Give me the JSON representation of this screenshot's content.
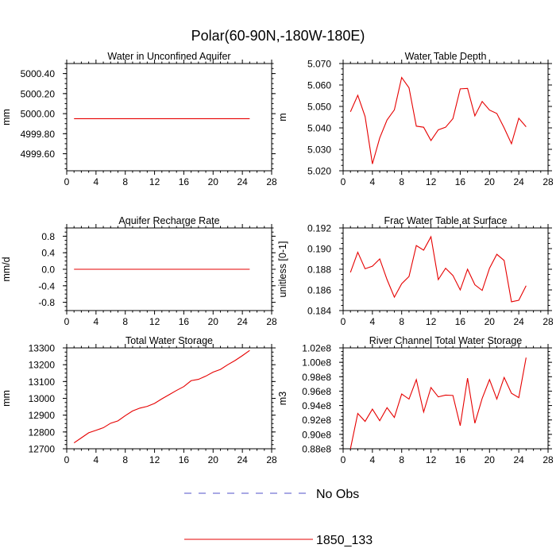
{
  "figure": {
    "title": "Polar(60-90N,-180W-180E)"
  },
  "legend": {
    "items": [
      {
        "label": "No Obs",
        "color": "#5050c8",
        "dash": true
      },
      {
        "label": "1850_133",
        "color": "#e60000",
        "dash": false
      }
    ]
  },
  "chart_data": [
    {
      "type": "line",
      "title": "Water in Unconfined Aquifer",
      "ylabel": "mm",
      "xlim": [
        0,
        28
      ],
      "ylim": [
        4999.43,
        5000.5
      ],
      "x_ticks": [
        0,
        4,
        8,
        12,
        16,
        20,
        24,
        28
      ],
      "y_ticks": [
        4999.6,
        4999.8,
        5000.0,
        5000.2,
        5000.4
      ],
      "y_tick_labels": [
        "4999.60",
        "4999.80",
        "5000.00",
        "5000.20",
        "5000.40"
      ],
      "x": [
        1,
        25
      ],
      "series": [
        {
          "name": "1850_133",
          "color": "#e60000",
          "values": [
            4999.95,
            4999.95
          ]
        }
      ]
    },
    {
      "type": "line",
      "title": "Water Table Depth",
      "ylabel": "m",
      "xlim": [
        0,
        28
      ],
      "ylim": [
        5.02,
        5.07
      ],
      "x_ticks": [
        0,
        4,
        8,
        12,
        16,
        20,
        24,
        28
      ],
      "y_ticks": [
        5.02,
        5.03,
        5.04,
        5.05,
        5.06,
        5.07
      ],
      "y_tick_labels": [
        "5.020",
        "5.030",
        "5.040",
        "5.050",
        "5.060",
        "5.070"
      ],
      "x": [
        1,
        2,
        3,
        4,
        5,
        6,
        7,
        8,
        9,
        10,
        11,
        12,
        13,
        14,
        15,
        16,
        17,
        18,
        19,
        20,
        21,
        22,
        23,
        24,
        25
      ],
      "series": [
        {
          "name": "1850_133",
          "color": "#e60000",
          "values": [
            5.0475,
            5.0552,
            5.0453,
            5.0232,
            5.0353,
            5.0437,
            5.0484,
            5.0635,
            5.0587,
            5.0408,
            5.0403,
            5.0341,
            5.0391,
            5.0403,
            5.0443,
            5.0582,
            5.0584,
            5.0456,
            5.0523,
            5.0483,
            5.0467,
            5.04,
            5.0326,
            5.0445,
            5.0405
          ]
        }
      ]
    },
    {
      "type": "line",
      "title": "Aquifer Recharge Rate",
      "ylabel": "mm/d",
      "xlim": [
        0,
        28
      ],
      "ylim": [
        -1.0,
        1.0
      ],
      "x_ticks": [
        0,
        4,
        8,
        12,
        16,
        20,
        24,
        28
      ],
      "y_ticks": [
        -0.8,
        -0.4,
        0.0,
        0.4,
        0.8
      ],
      "y_tick_labels": [
        "-0.8",
        "-0.4",
        "0.0",
        "0.4",
        "0.8"
      ],
      "x": [
        1,
        25
      ],
      "series": [
        {
          "name": "1850_133",
          "color": "#e60000",
          "values": [
            0.0,
            0.0
          ]
        }
      ]
    },
    {
      "type": "line",
      "title": "Frac Water Table at Surface",
      "ylabel": "unitless [0-1]",
      "xlim": [
        0,
        28
      ],
      "ylim": [
        0.184,
        0.192
      ],
      "x_ticks": [
        0,
        4,
        8,
        12,
        16,
        20,
        24,
        28
      ],
      "y_ticks": [
        0.184,
        0.186,
        0.188,
        0.19,
        0.192
      ],
      "y_tick_labels": [
        "0.184",
        "0.186",
        "0.188",
        "0.190",
        "0.192"
      ],
      "x": [
        1,
        2,
        3,
        4,
        5,
        6,
        7,
        8,
        9,
        10,
        11,
        12,
        13,
        14,
        15,
        16,
        17,
        18,
        19,
        20,
        21,
        22,
        23,
        24,
        25
      ],
      "series": [
        {
          "name": "1850_133",
          "color": "#e60000",
          "values": [
            0.1877,
            0.18965,
            0.18805,
            0.1883,
            0.189,
            0.187,
            0.1853,
            0.1866,
            0.1873,
            0.1903,
            0.18985,
            0.19115,
            0.187,
            0.1881,
            0.1874,
            0.186,
            0.188,
            0.1865,
            0.18595,
            0.1881,
            0.18945,
            0.18885,
            0.18485,
            0.185,
            0.1864
          ]
        }
      ]
    },
    {
      "type": "line",
      "title": "Total Water Storage",
      "ylabel": "mm",
      "xlim": [
        0,
        28
      ],
      "ylim": [
        12700,
        13300
      ],
      "x_ticks": [
        0,
        4,
        8,
        12,
        16,
        20,
        24,
        28
      ],
      "y_ticks": [
        12700,
        12800,
        12900,
        13000,
        13100,
        13200,
        13300
      ],
      "y_tick_labels": [
        "12700",
        "12800",
        "12900",
        "13000",
        "13100",
        "13200",
        "13300"
      ],
      "x": [
        1,
        2,
        3,
        4,
        5,
        6,
        7,
        8,
        9,
        10,
        11,
        12,
        13,
        14,
        15,
        16,
        17,
        18,
        19,
        20,
        21,
        22,
        23,
        24,
        25
      ],
      "series": [
        {
          "name": "1850_133",
          "color": "#e60000",
          "values": [
            12735,
            12765,
            12795,
            12810,
            12825,
            12852,
            12866,
            12897,
            12925,
            12942,
            12952,
            12970,
            12997,
            13022,
            13047,
            13070,
            13105,
            13113,
            13132,
            13156,
            13172,
            13200,
            13225,
            13254,
            13285
          ]
        }
      ]
    },
    {
      "type": "line",
      "title": "River Channel Total Water Storage",
      "ylabel": "m3",
      "xlim": [
        0,
        28
      ],
      "ylim": [
        88000000.0,
        102000000.0
      ],
      "x_ticks": [
        0,
        4,
        8,
        12,
        16,
        20,
        24,
        28
      ],
      "y_ticks": [
        88000000.0,
        90000000.0,
        92000000.0,
        94000000.0,
        96000000.0,
        98000000.0,
        100000000.0,
        102000000.0
      ],
      "y_tick_labels": [
        "0.88e8",
        "0.90e8",
        "0.92e8",
        "0.94e8",
        "0.96e8",
        "0.98e8",
        "1.00e8",
        "1.02e8"
      ],
      "x": [
        1,
        2,
        3,
        4,
        5,
        6,
        7,
        8,
        9,
        10,
        11,
        12,
        13,
        14,
        15,
        16,
        17,
        18,
        19,
        20,
        21,
        22,
        23,
        24,
        25
      ],
      "series": [
        {
          "name": "1850_133",
          "color": "#e60000",
          "values": [
            88000000.0,
            92900000.0,
            91800000.0,
            93500000.0,
            91900000.0,
            93700000.0,
            92350000.0,
            95600000.0,
            94900000.0,
            97600000.0,
            93100000.0,
            96500000.0,
            95200000.0,
            95450000.0,
            95400000.0,
            91200000.0,
            97800000.0,
            91550000.0,
            95000000.0,
            97600000.0,
            94900000.0,
            97900000.0,
            95700000.0,
            95100000.0,
            100650000.0
          ]
        }
      ]
    }
  ]
}
